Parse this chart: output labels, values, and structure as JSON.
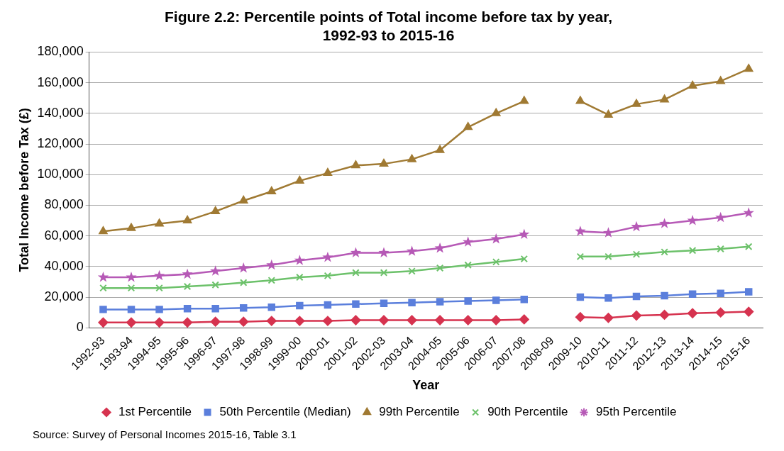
{
  "chart_data": {
    "type": "line",
    "title": "Figure 2.2: Percentile points of Total income before tax by year,\n1992-93 to 2015-16",
    "xlabel": "Year",
    "ylabel": "Total Income before Tax (£)",
    "categories": [
      "1992-93",
      "1993-94",
      "1994-95",
      "1995-96",
      "1996-97",
      "1997-98",
      "1998-99",
      "1999-00",
      "2000-01",
      "2001-02",
      "2002-03",
      "2003-04",
      "2004-05",
      "2005-06",
      "2006-07",
      "2007-08",
      "2008-09",
      "2009-10",
      "2010-11",
      "2011-12",
      "2012-13",
      "2013-14",
      "2014-15",
      "2015-16"
    ],
    "series": [
      {
        "name": "1st Percentile",
        "color": "#d6334f",
        "marker": "diamond",
        "values": [
          3500,
          3500,
          3500,
          3500,
          4000,
          4000,
          4500,
          4500,
          4500,
          5000,
          5000,
          5000,
          5000,
          5000,
          5000,
          5500,
          null,
          7000,
          6500,
          8000,
          8500,
          9500,
          10000,
          10500
        ]
      },
      {
        "name": "50th Percentile (Median)",
        "color": "#5b7fdc",
        "marker": "square",
        "values": [
          12000,
          12000,
          12000,
          12500,
          12500,
          13000,
          13500,
          14500,
          15000,
          15500,
          16000,
          16500,
          17000,
          17500,
          18000,
          18500,
          null,
          20000,
          19500,
          20500,
          21000,
          22000,
          22500,
          23500
        ]
      },
      {
        "name": "99th Percentile",
        "color": "#a07a33",
        "marker": "triangle",
        "values": [
          63000,
          65000,
          68000,
          70000,
          76000,
          83000,
          89000,
          96000,
          101000,
          106000,
          107000,
          110000,
          116000,
          131000,
          140000,
          148000,
          null,
          148000,
          139000,
          146000,
          149000,
          158000,
          161000,
          169000
        ]
      },
      {
        "name": "90th Percentile",
        "color": "#6cc16a",
        "marker": "cross",
        "values": [
          26000,
          26000,
          26000,
          27000,
          28000,
          29500,
          31000,
          33000,
          34000,
          36000,
          36000,
          37000,
          39000,
          41000,
          43000,
          45000,
          null,
          46500,
          46500,
          48000,
          49500,
          50500,
          51500,
          53000
        ]
      },
      {
        "name": "95th Percentile",
        "color": "#b659b6",
        "marker": "star",
        "values": [
          33000,
          33000,
          34000,
          35000,
          37000,
          39000,
          41000,
          44000,
          46000,
          49000,
          49000,
          50000,
          52000,
          56000,
          58000,
          61000,
          null,
          63000,
          62000,
          66000,
          68000,
          70000,
          72000,
          75000
        ]
      }
    ],
    "ylim": [
      0,
      180000
    ],
    "yticks": [
      0,
      {
        "value": 20000,
        "label": "20,000"
      },
      {
        "value": 40000,
        "label": "40,000"
      },
      {
        "value": 60000,
        "label": "60,000"
      },
      {
        "value": 80000,
        "label": "80,000"
      },
      {
        "value": 100000,
        "label": "100,000"
      },
      {
        "value": 120000,
        "label": "120,000"
      },
      {
        "value": 140000,
        "label": "140,000"
      },
      {
        "value": 160000,
        "label": "160,000"
      },
      {
        "value": 180000,
        "label": "180,000"
      }
    ],
    "grid": "y",
    "legend": "bottom",
    "line_style": "solid",
    "annotations": [
      "Source: Survey of Personal Incomes 2015-16, Table 3.1"
    ]
  }
}
